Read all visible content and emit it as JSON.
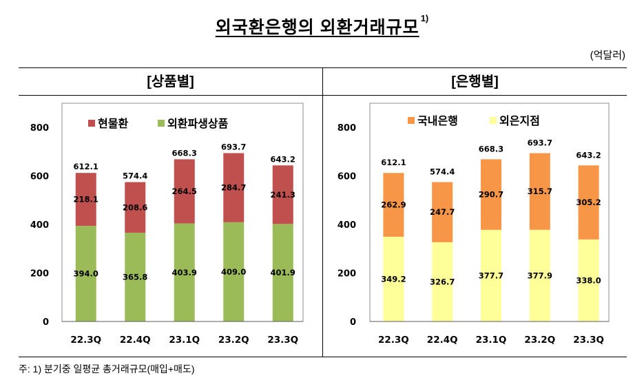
{
  "title": {
    "text": "외국환은행의 외환거래규모",
    "sup": "1)"
  },
  "unit": "(억달러)",
  "footnote": "주: 1) 분기중 일평균 총거래규모(매입+매도)",
  "chart_data": [
    {
      "type": "bar",
      "stacked": true,
      "title": "[상품별]",
      "categories": [
        "22.3Q",
        "22.4Q",
        "23.1Q",
        "23.2Q",
        "23.3Q"
      ],
      "series": [
        {
          "name": "현물환",
          "color": "#C0504D",
          "values": [
            218.1,
            208.6,
            264.5,
            284.7,
            241.3
          ]
        },
        {
          "name": "외환파생상품",
          "color": "#9BBB59",
          "values": [
            394.0,
            365.8,
            403.9,
            409.0,
            401.9
          ]
        }
      ],
      "totals": [
        612.1,
        574.4,
        668.3,
        693.7,
        643.2
      ],
      "ylim": [
        0,
        800
      ],
      "yticks": [
        0,
        200,
        400,
        600,
        800
      ],
      "grid": false,
      "legend": "top"
    },
    {
      "type": "bar",
      "stacked": true,
      "title": "[은행별]",
      "categories": [
        "22.3Q",
        "22.4Q",
        "23.1Q",
        "23.2Q",
        "23.3Q"
      ],
      "series": [
        {
          "name": "국내은행",
          "color": "#F79646",
          "values": [
            262.9,
            247.7,
            290.7,
            315.7,
            305.2
          ]
        },
        {
          "name": "외은지점",
          "color": "#FFFF99",
          "values": [
            349.2,
            326.7,
            377.7,
            377.9,
            338.0
          ]
        }
      ],
      "totals": [
        612.1,
        574.4,
        668.3,
        693.7,
        643.2
      ],
      "ylim": [
        0,
        800
      ],
      "yticks": [
        0,
        200,
        400,
        600,
        800
      ],
      "grid": false,
      "legend": "top"
    }
  ]
}
